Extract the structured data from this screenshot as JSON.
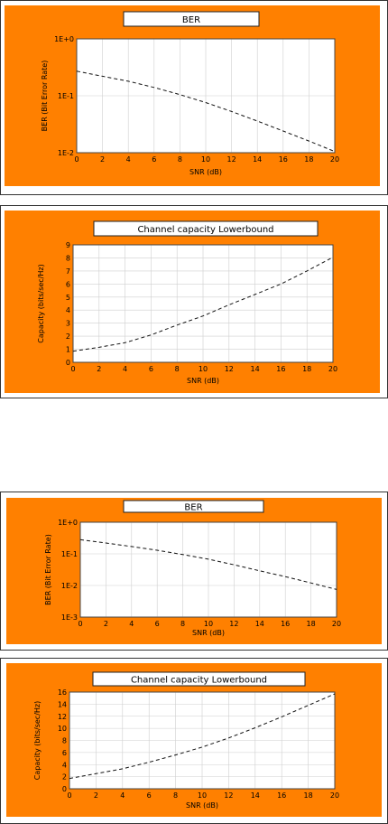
{
  "colors": {
    "frame_bg": "#ff8000",
    "plot_bg": "#ffffff",
    "grid": "#cfcfcf",
    "series": "#111111"
  },
  "chart_data": [
    {
      "type": "line",
      "title": "BER",
      "xlabel": "SNR (dB)",
      "ylabel": "BER (Bit Error Rate)",
      "yscale": "log",
      "xlim": [
        0,
        20
      ],
      "ylim": [
        0.01,
        1
      ],
      "xticks": [
        "0",
        "2",
        "4",
        "6",
        "8",
        "10",
        "12",
        "14",
        "16",
        "18",
        "20"
      ],
      "yticks": [
        "1E-2",
        "1E-1",
        "1E+0"
      ],
      "grid": true,
      "series": [
        {
          "x": [
            0,
            2,
            4,
            6,
            8,
            10,
            12,
            14,
            16,
            18,
            20
          ],
          "y": [
            0.27,
            0.22,
            0.18,
            0.14,
            0.105,
            0.076,
            0.053,
            0.036,
            0.024,
            0.016,
            0.0105
          ]
        }
      ]
    },
    {
      "type": "line",
      "title": "Channel capacity Lowerbound",
      "xlabel": "SNR (dB)",
      "ylabel": "Capacity (bits/sec/Hz)",
      "xlim": [
        0,
        20
      ],
      "ylim": [
        0,
        9
      ],
      "xticks": [
        "0",
        "2",
        "4",
        "6",
        "8",
        "10",
        "12",
        "14",
        "16",
        "18",
        "20"
      ],
      "yticks": [
        "0",
        "1",
        "2",
        "3",
        "4",
        "5",
        "6",
        "7",
        "8",
        "9"
      ],
      "grid": true,
      "series": [
        {
          "x": [
            0,
            2,
            4,
            6,
            8,
            10,
            12,
            14,
            16,
            18,
            20
          ],
          "y": [
            0.85,
            1.15,
            1.5,
            2.1,
            2.85,
            3.55,
            4.4,
            5.2,
            6.0,
            7.0,
            8.05
          ]
        }
      ]
    },
    {
      "type": "line",
      "title": "BER",
      "xlabel": "SNR (dB)",
      "ylabel": "BER (Bit Error Rate)",
      "yscale": "log",
      "xlim": [
        0,
        20
      ],
      "ylim": [
        0.001,
        1
      ],
      "xticks": [
        "0",
        "2",
        "4",
        "6",
        "8",
        "10",
        "12",
        "14",
        "16",
        "18",
        "20"
      ],
      "yticks": [
        "1E-3",
        "1E-2",
        "1E-1",
        "1E+0"
      ],
      "grid": true,
      "series": [
        {
          "x": [
            0,
            2,
            4,
            6,
            8,
            10,
            12,
            14,
            16,
            18,
            20
          ],
          "y": [
            0.28,
            0.22,
            0.17,
            0.13,
            0.095,
            0.068,
            0.045,
            0.029,
            0.019,
            0.012,
            0.0075
          ]
        }
      ]
    },
    {
      "type": "line",
      "title": "Channel capacity Lowerbound",
      "xlabel": "SNR (dB)",
      "ylabel": "Capacity (bits/sec/Hz)",
      "xlim": [
        0,
        20
      ],
      "ylim": [
        0,
        16
      ],
      "xticks": [
        "0",
        "2",
        "4",
        "6",
        "8",
        "10",
        "12",
        "14",
        "16",
        "18",
        "20"
      ],
      "yticks": [
        "0",
        "2",
        "4",
        "6",
        "8",
        "10",
        "12",
        "14",
        "16"
      ],
      "grid": true,
      "series": [
        {
          "x": [
            0,
            2,
            4,
            6,
            8,
            10,
            12,
            14,
            16,
            18,
            20
          ],
          "y": [
            1.7,
            2.5,
            3.3,
            4.4,
            5.6,
            6.9,
            8.4,
            10.1,
            11.9,
            13.8,
            15.7
          ]
        }
      ]
    }
  ]
}
